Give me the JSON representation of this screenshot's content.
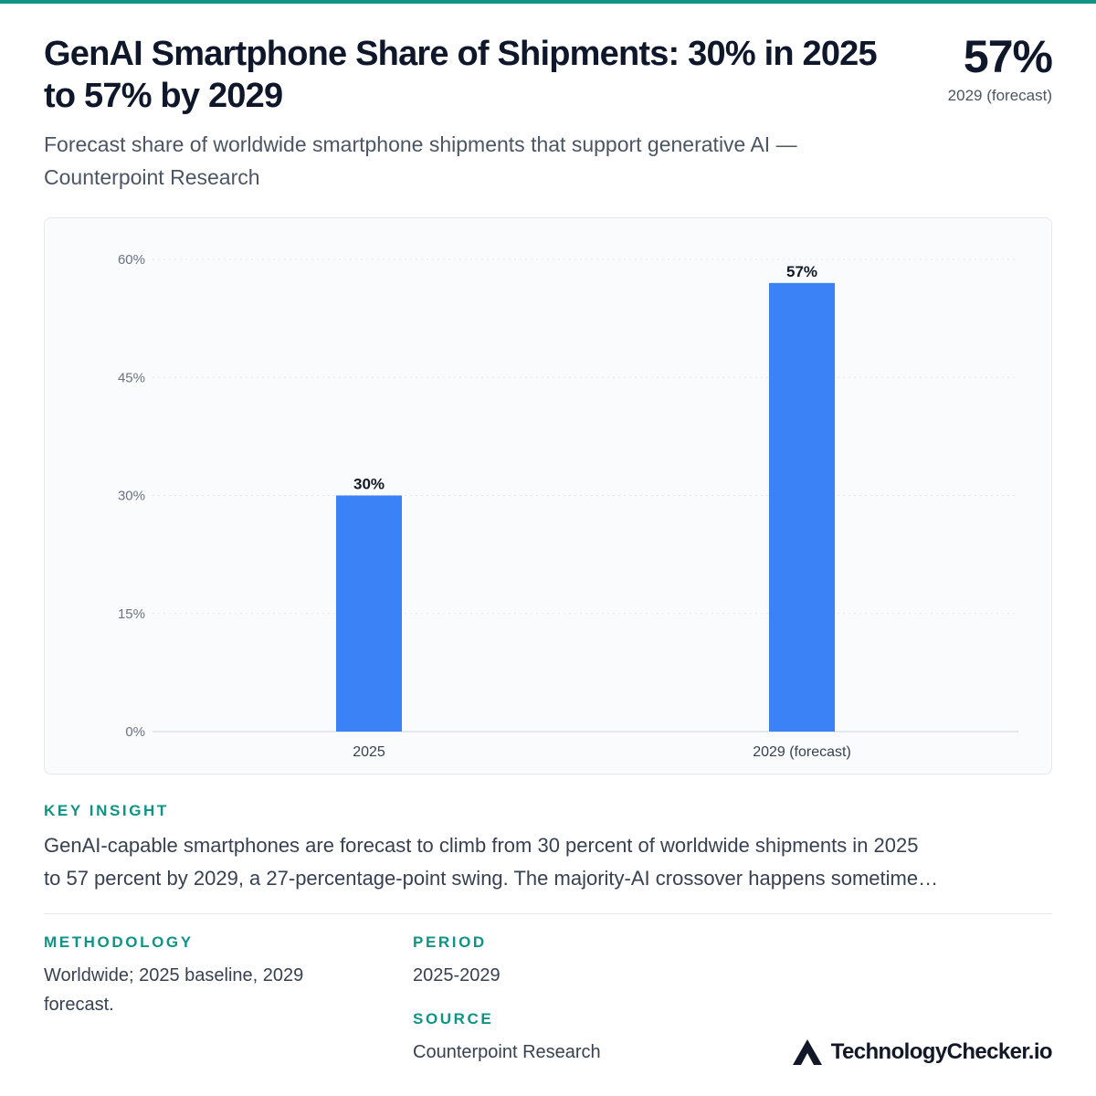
{
  "header": {
    "title": "GenAI Smartphone Share of Shipments: 30% in 2025 to 57% by 2029",
    "subtitle": "Forecast share of worldwide smartphone shipments that support generative AI — Counterpoint Research",
    "kpi_value": "57%",
    "kpi_label": "2029 (forecast)"
  },
  "chart_data": {
    "type": "bar",
    "categories": [
      "2025",
      "2029 (forecast)"
    ],
    "values": [
      30,
      57
    ],
    "value_labels": [
      "30%",
      "57%"
    ],
    "ylim": [
      0,
      60
    ],
    "yticks": [
      0,
      15,
      30,
      45,
      60
    ],
    "ytick_labels": [
      "0%",
      "15%",
      "30%",
      "45%",
      "60%"
    ],
    "grid": true,
    "bar_color": "#3b82f6"
  },
  "insight": {
    "label": "KEY INSIGHT",
    "line1": "GenAI-capable smartphones are forecast to climb from 30 percent of worldwide shipments in 2025",
    "line2": "to 57 percent by 2029, a 27-percentage-point swing. The majority-AI crossover happens sometime…"
  },
  "methodology": {
    "label": "METHODOLOGY",
    "line1": "Worldwide; 2025 baseline, 2029",
    "line2": "forecast."
  },
  "period": {
    "label": "PERIOD",
    "value": "2025-2029"
  },
  "source": {
    "label": "SOURCE",
    "value": "Counterpoint Research"
  },
  "brand": {
    "name": "TechnologyChecker.io",
    "icon": "triangle-logo-icon"
  },
  "colors": {
    "accent": "#0e9384",
    "bar": "#3b82f6"
  }
}
